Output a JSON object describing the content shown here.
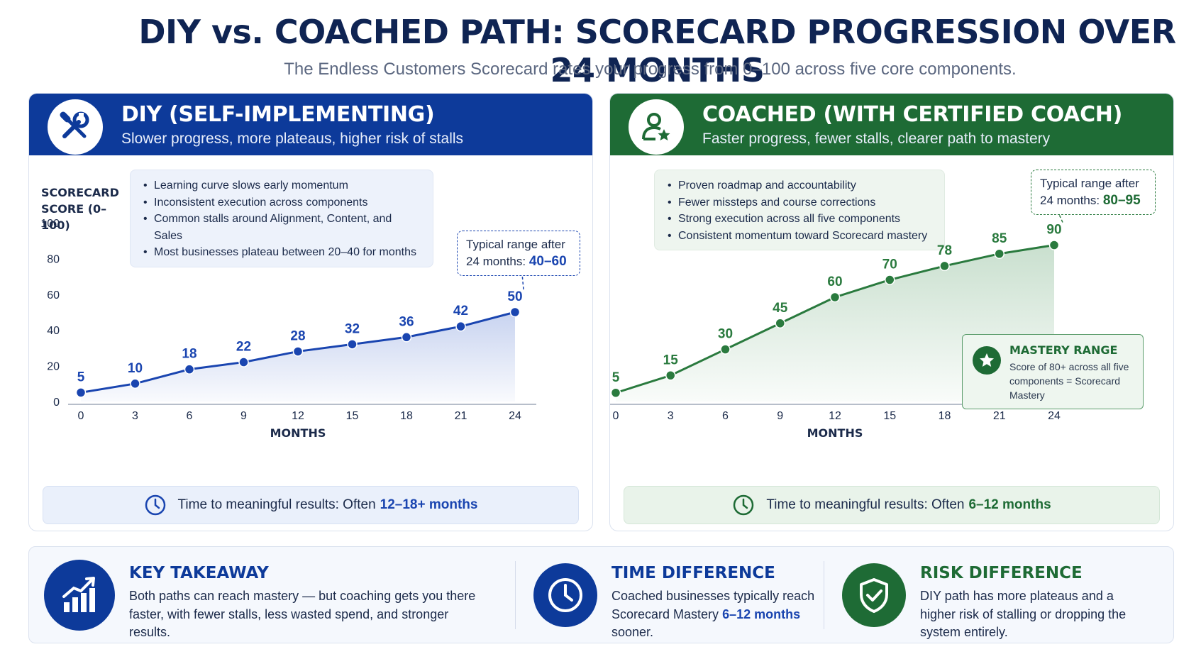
{
  "title": "DIY vs. COACHED PATH: SCORECARD PROGRESSION OVER 24 MONTHS",
  "subtitle": "The Endless Customers Scorecard rates your progress from 0–100 across five core components.",
  "colors": {
    "diy": "#0d3a9a",
    "diy_line": "#1a45b0",
    "coached": "#1e6b35",
    "coached_line": "#2a7a3e"
  },
  "diy": {
    "icon": "tools-icon",
    "title": "DIY (SELF-IMPLEMENTING)",
    "subtitle": "Slower progress, more plateaus, higher risk of stalls",
    "bullets": [
      "Learning curve slows early momentum",
      "Inconsistent execution across components",
      "Common stalls around Alignment, Content, and Sales",
      "Most businesses plateau between 20–40 for months"
    ],
    "callout_text": "Typical range after 24 months:",
    "callout_value": "40–60",
    "result_text": "Time to meaningful results: Often",
    "result_value": "12–18+ months"
  },
  "coached": {
    "icon": "coach-star-icon",
    "title": "COACHED (WITH CERTIFIED COACH)",
    "subtitle": "Faster progress, fewer stalls, clearer path to mastery",
    "bullets": [
      "Proven roadmap and accountability",
      "Fewer missteps and course corrections",
      "Strong execution across all five components",
      "Consistent momentum toward Scorecard mastery"
    ],
    "callout_text": "Typical range after 24 months:",
    "callout_value": "80–95",
    "mastery_title": "MASTERY RANGE",
    "mastery_text": "Score of 80+ across all five components = Scorecard Mastery",
    "result_text": "Time to meaningful results: Often",
    "result_value": "6–12 months"
  },
  "chart_data": [
    {
      "type": "line",
      "ylabel": "SCORECARD SCORE (0–100)",
      "xlabel": "MONTHS",
      "x": [
        0,
        3,
        6,
        9,
        12,
        15,
        18,
        21,
        24
      ],
      "y": [
        5,
        10,
        18,
        22,
        28,
        32,
        36,
        42,
        50
      ],
      "ylim": [
        0,
        100
      ],
      "yticks": [
        0,
        20,
        40,
        60,
        80,
        100
      ],
      "area_fill": true
    },
    {
      "type": "line",
      "ylabel": "",
      "xlabel": "MONTHS",
      "x": [
        0,
        3,
        6,
        9,
        12,
        15,
        18,
        21,
        24
      ],
      "y": [
        5,
        15,
        30,
        45,
        60,
        70,
        78,
        85,
        90
      ],
      "ylim": [
        0,
        100
      ],
      "yticks": [
        0,
        20,
        40,
        60,
        80,
        100
      ],
      "area_fill": true
    }
  ],
  "bottom": {
    "key": {
      "icon": "growth-chart-icon",
      "title": "KEY TAKEAWAY",
      "text": "Both paths can reach mastery — but coaching gets you there faster, with fewer stalls, less wasted spend, and stronger results."
    },
    "time": {
      "icon": "clock-icon",
      "title": "TIME DIFFERENCE",
      "text_before": "Coached businesses typically reach Scorecard Mastery",
      "text_value": "6–12 months",
      "text_after": "sooner."
    },
    "risk": {
      "icon": "shield-check-icon",
      "title": "RISK DIFFERENCE",
      "text": "DIY path has more plateaus and a higher risk of stalling or dropping the system entirely."
    }
  }
}
